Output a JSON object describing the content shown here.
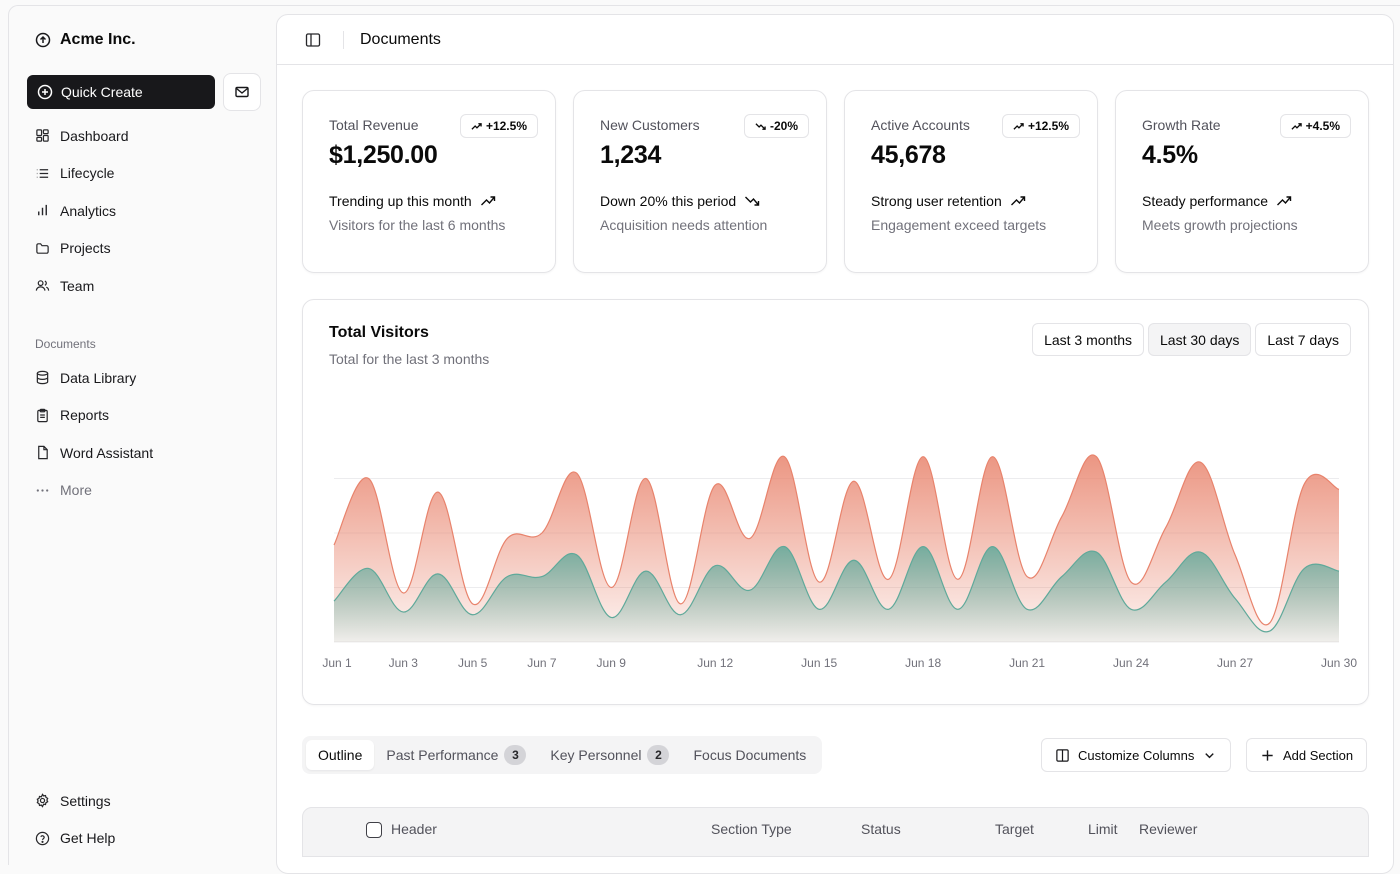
{
  "sidebar": {
    "company": "Acme Inc.",
    "quick_create": "Quick Create",
    "nav": [
      {
        "label": "Dashboard",
        "icon": "dashboard-icon"
      },
      {
        "label": "Lifecycle",
        "icon": "list-icon"
      },
      {
        "label": "Analytics",
        "icon": "bar-chart-icon"
      },
      {
        "label": "Projects",
        "icon": "folder-icon"
      },
      {
        "label": "Team",
        "icon": "users-icon"
      }
    ],
    "documents_label": "Documents",
    "documents": [
      {
        "label": "Data Library",
        "icon": "database-icon"
      },
      {
        "label": "Reports",
        "icon": "clipboard-icon"
      },
      {
        "label": "Word Assistant",
        "icon": "file-icon"
      },
      {
        "label": "More",
        "icon": "more-dots-icon"
      }
    ],
    "footer": [
      {
        "label": "Settings",
        "icon": "gear-icon"
      },
      {
        "label": "Get Help",
        "icon": "help-icon"
      }
    ]
  },
  "header": {
    "title": "Documents"
  },
  "cards": [
    {
      "label": "Total Revenue",
      "badge": "+12.5%",
      "badge_dir": "up",
      "value": "$1,250.00",
      "trend": "Trending up this month",
      "sub": "Visitors for the last 6 months"
    },
    {
      "label": "New Customers",
      "badge": "-20%",
      "badge_dir": "down",
      "value": "1,234",
      "trend": "Down 20% this period",
      "sub": "Acquisition needs attention"
    },
    {
      "label": "Active Accounts",
      "badge": "+12.5%",
      "badge_dir": "up",
      "value": "45,678",
      "trend": "Strong user retention",
      "sub": "Engagement exceed targets"
    },
    {
      "label": "Growth Rate",
      "badge": "+4.5%",
      "badge_dir": "up",
      "value": "4.5%",
      "trend": "Steady performance",
      "sub": "Meets growth projections"
    }
  ],
  "chart_section": {
    "title": "Total Visitors",
    "subtitle": "Total for the last 3 months",
    "ranges": [
      "Last 3 months",
      "Last 30 days",
      "Last 7 days"
    ],
    "active_range": "Last 30 days"
  },
  "chart_data": {
    "type": "area",
    "x": [
      "Jun 1",
      "Jun 2",
      "Jun 3",
      "Jun 4",
      "Jun 5",
      "Jun 6",
      "Jun 7",
      "Jun 8",
      "Jun 9",
      "Jun 10",
      "Jun 11",
      "Jun 12",
      "Jun 13",
      "Jun 14",
      "Jun 15",
      "Jun 16",
      "Jun 17",
      "Jun 18",
      "Jun 19",
      "Jun 20",
      "Jun 21",
      "Jun 22",
      "Jun 23",
      "Jun 24",
      "Jun 25",
      "Jun 26",
      "Jun 27",
      "Jun 28",
      "Jun 29",
      "Jun 30"
    ],
    "tick_labels": [
      "Jun 1",
      "Jun 3",
      "Jun 5",
      "Jun 7",
      "Jun 9",
      "Jun 12",
      "Jun 15",
      "Jun 18",
      "Jun 21",
      "Jun 24",
      "Jun 27",
      "Jun 30"
    ],
    "ylim": [
      0,
      400
    ],
    "grid": true,
    "series": [
      {
        "values": [
          178,
          300,
          90,
          275,
          70,
          190,
          200,
          310,
          100,
          300,
          70,
          288,
          190,
          340,
          110,
          295,
          115,
          340,
          115,
          340,
          120,
          230,
          340,
          110,
          210,
          330,
          160,
          35,
          290,
          280
        ],
        "color": "#e8836c"
      },
      {
        "values": [
          75,
          135,
          55,
          125,
          50,
          120,
          120,
          160,
          45,
          130,
          50,
          140,
          95,
          175,
          60,
          150,
          60,
          175,
          60,
          175,
          60,
          120,
          165,
          60,
          110,
          165,
          80,
          20,
          135,
          130
        ],
        "color": "#5fa99a"
      }
    ]
  },
  "tabs": [
    {
      "label": "Outline",
      "count": ""
    },
    {
      "label": "Past Performance",
      "count": "3"
    },
    {
      "label": "Key Personnel",
      "count": "2"
    },
    {
      "label": "Focus Documents",
      "count": ""
    }
  ],
  "actions": {
    "customize": "Customize Columns",
    "add_section": "Add Section"
  },
  "table": {
    "columns": [
      "Header",
      "Section Type",
      "Status",
      "Target",
      "Limit",
      "Reviewer"
    ]
  }
}
